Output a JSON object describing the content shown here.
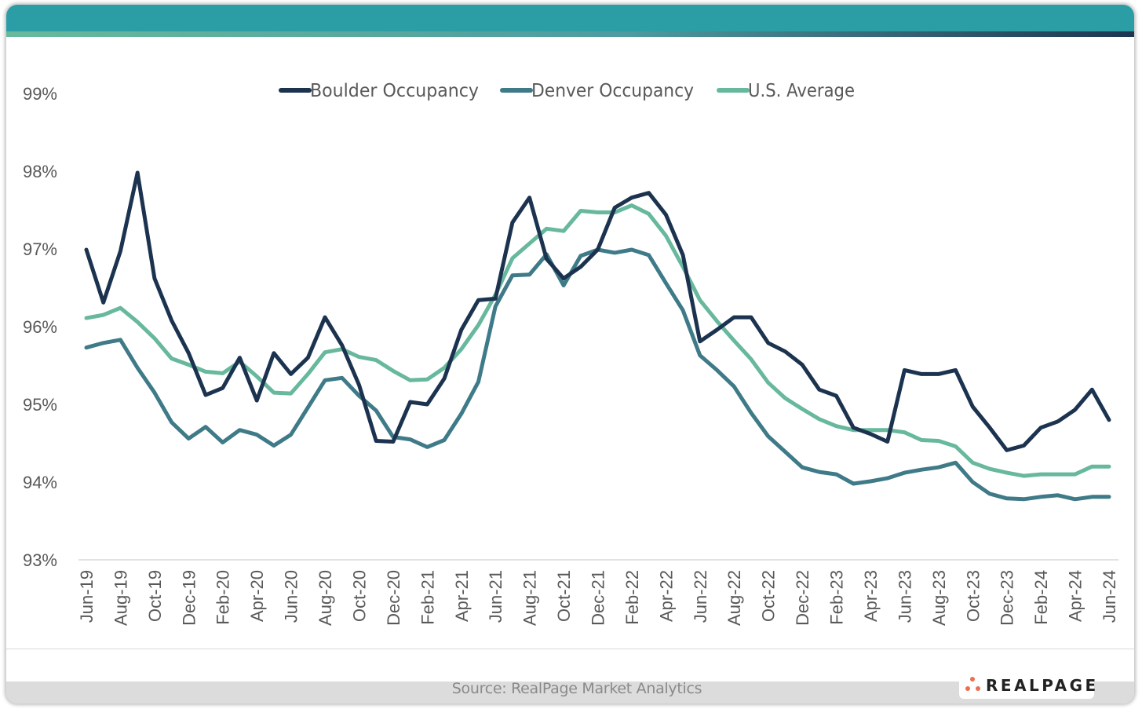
{
  "footer": {
    "source": "Source: RealPage Market Analytics",
    "logo_text": "REALPAGE"
  },
  "chart_data": {
    "type": "line",
    "title": "",
    "xlabel": "",
    "ylabel": "",
    "ylim": [
      93,
      99
    ],
    "yticks": [
      "93%",
      "94%",
      "95%",
      "96%",
      "97%",
      "98%",
      "99%"
    ],
    "ytick_values": [
      93,
      94,
      95,
      96,
      97,
      98,
      99
    ],
    "grid": "baseline only",
    "legend_position": "top-center",
    "x": [
      "Jun-19",
      "Jul-19",
      "Aug-19",
      "Sep-19",
      "Oct-19",
      "Nov-19",
      "Dec-19",
      "Jan-20",
      "Feb-20",
      "Mar-20",
      "Apr-20",
      "May-20",
      "Jun-20",
      "Jul-20",
      "Aug-20",
      "Sep-20",
      "Oct-20",
      "Nov-20",
      "Dec-20",
      "Jan-21",
      "Feb-21",
      "Mar-21",
      "Apr-21",
      "May-21",
      "Jun-21",
      "Jul-21",
      "Aug-21",
      "Sep-21",
      "Oct-21",
      "Nov-21",
      "Dec-21",
      "Jan-22",
      "Feb-22",
      "Mar-22",
      "Apr-22",
      "May-22",
      "Jun-22",
      "Jul-22",
      "Aug-22",
      "Sep-22",
      "Oct-22",
      "Nov-22",
      "Dec-22",
      "Jan-23",
      "Feb-23",
      "Mar-23",
      "Apr-23",
      "May-23",
      "Jun-23",
      "Jul-23",
      "Aug-23",
      "Sep-23",
      "Oct-23",
      "Nov-23",
      "Dec-23",
      "Jan-24",
      "Feb-24",
      "Mar-24",
      "Apr-24",
      "May-24",
      "Jun-24"
    ],
    "xtick_labels": [
      "Jun-19",
      "Aug-19",
      "Oct-19",
      "Dec-19",
      "Feb-20",
      "Apr-20",
      "Jun-20",
      "Aug-20",
      "Oct-20",
      "Dec-20",
      "Feb-21",
      "Apr-21",
      "Jun-21",
      "Aug-21",
      "Oct-21",
      "Dec-21",
      "Feb-22",
      "Apr-22",
      "Jun-22",
      "Aug-22",
      "Oct-22",
      "Dec-22",
      "Feb-23",
      "Apr-23",
      "Jun-23",
      "Aug-23",
      "Oct-23",
      "Dec-23",
      "Feb-24",
      "Apr-24",
      "Jun-24"
    ],
    "series": [
      {
        "name": "Boulder Occupancy",
        "color": "#1c3350",
        "values": [
          96.99,
          96.31,
          96.97,
          97.98,
          96.62,
          96.08,
          95.66,
          95.12,
          95.21,
          95.6,
          95.05,
          95.66,
          95.39,
          95.6,
          96.12,
          95.76,
          95.25,
          94.53,
          94.52,
          95.03,
          95.0,
          95.33,
          95.96,
          96.34,
          96.36,
          97.34,
          97.66,
          96.87,
          96.62,
          96.77,
          96.99,
          97.53,
          97.66,
          97.72,
          97.44,
          96.92,
          95.81,
          95.96,
          96.12,
          96.12,
          95.79,
          95.68,
          95.51,
          95.19,
          95.11,
          94.7,
          94.62,
          94.52,
          95.44,
          95.39,
          95.39,
          95.44,
          94.97,
          94.7,
          94.41,
          94.47,
          94.7,
          94.78,
          94.93,
          95.19,
          94.8
        ]
      },
      {
        "name": "Denver Occupancy",
        "color": "#3e7a87",
        "values": [
          95.73,
          95.79,
          95.83,
          95.47,
          95.15,
          94.77,
          94.56,
          94.71,
          94.51,
          94.67,
          94.61,
          94.47,
          94.61,
          94.96,
          95.31,
          95.34,
          95.11,
          94.92,
          94.58,
          94.55,
          94.45,
          94.54,
          94.88,
          95.29,
          96.26,
          96.66,
          96.67,
          96.93,
          96.53,
          96.91,
          96.99,
          96.95,
          96.99,
          96.92,
          96.56,
          96.21,
          95.63,
          95.44,
          95.23,
          94.89,
          94.59,
          94.39,
          94.19,
          94.13,
          94.1,
          93.98,
          94.01,
          94.05,
          94.12,
          94.16,
          94.19,
          94.25,
          94.0,
          93.85,
          93.79,
          93.78,
          93.81,
          93.83,
          93.78,
          93.81,
          93.81
        ]
      },
      {
        "name": "U.S. Average",
        "color": "#67b89d",
        "values": [
          96.11,
          96.15,
          96.24,
          96.06,
          95.85,
          95.59,
          95.51,
          95.42,
          95.4,
          95.55,
          95.36,
          95.15,
          95.14,
          95.39,
          95.67,
          95.71,
          95.61,
          95.57,
          95.43,
          95.31,
          95.32,
          95.47,
          95.71,
          96.02,
          96.41,
          96.88,
          97.07,
          97.26,
          97.23,
          97.49,
          97.47,
          97.47,
          97.56,
          97.45,
          97.17,
          96.77,
          96.34,
          96.07,
          95.82,
          95.58,
          95.28,
          95.08,
          94.94,
          94.81,
          94.72,
          94.67,
          94.67,
          94.67,
          94.64,
          94.54,
          94.53,
          94.46,
          94.25,
          94.17,
          94.12,
          94.08,
          94.1,
          94.1,
          94.1,
          94.2,
          94.2
        ]
      }
    ]
  }
}
